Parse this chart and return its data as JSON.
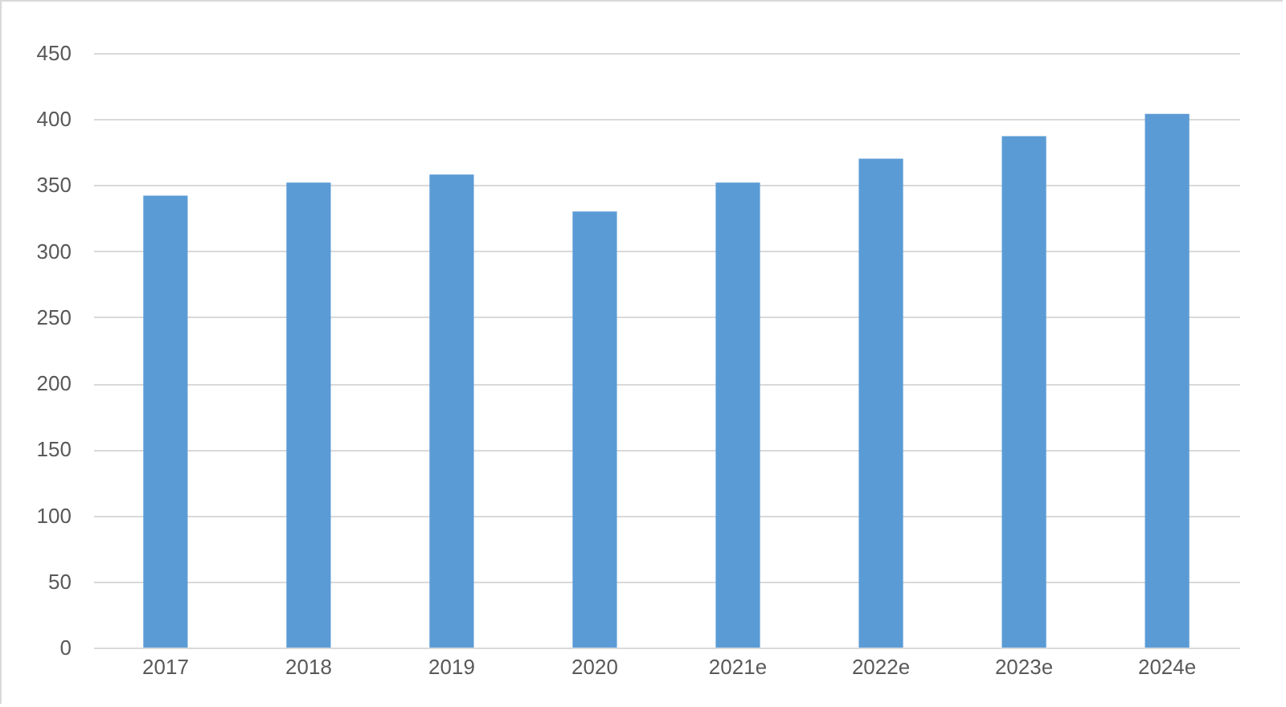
{
  "chart_data": {
    "type": "bar",
    "categories": [
      "2017",
      "2018",
      "2019",
      "2020",
      "2021e",
      "2022e",
      "2023e",
      "2024e"
    ],
    "values": [
      342,
      352,
      358,
      330,
      352,
      370,
      387,
      404
    ],
    "color": "#5b9bd5",
    "ylim": [
      0,
      450
    ],
    "yticks": [
      0,
      50,
      100,
      150,
      200,
      250,
      300,
      350,
      400,
      450
    ],
    "grid": "y"
  }
}
